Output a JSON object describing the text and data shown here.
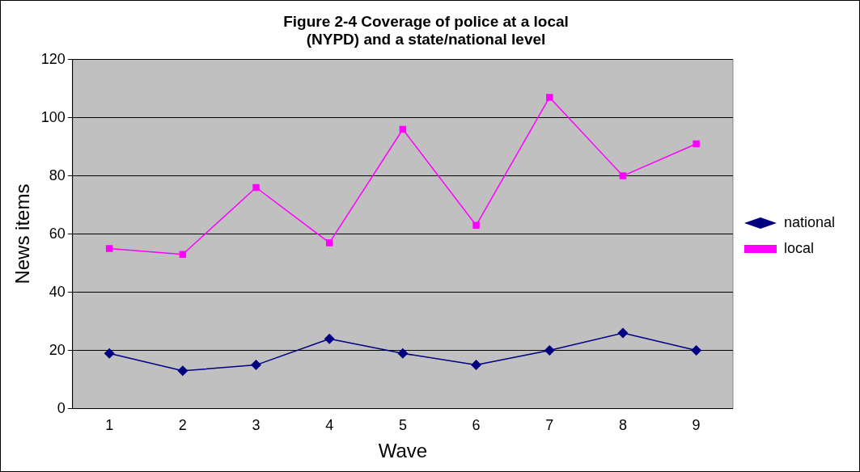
{
  "chart_data": {
    "type": "line",
    "title": "Figure 2-4 Coverage of police at a local (NYPD) and a state/national level",
    "xlabel": "Wave",
    "ylabel": "News items",
    "categories": [
      "1",
      "2",
      "3",
      "4",
      "5",
      "6",
      "7",
      "8",
      "9"
    ],
    "series": [
      {
        "name": "national",
        "color": "#000080",
        "marker": "diamond",
        "values": [
          19,
          13,
          15,
          24,
          19,
          15,
          20,
          26,
          20
        ]
      },
      {
        "name": "local",
        "color": "#ff00ff",
        "marker": "square",
        "values": [
          55,
          53,
          76,
          57,
          96,
          63,
          107,
          80,
          91
        ]
      }
    ],
    "ylim": [
      0,
      120
    ],
    "yticks": [
      0,
      20,
      40,
      60,
      80,
      100,
      120
    ],
    "grid": "y",
    "legend": "right",
    "line_style": "solid"
  }
}
